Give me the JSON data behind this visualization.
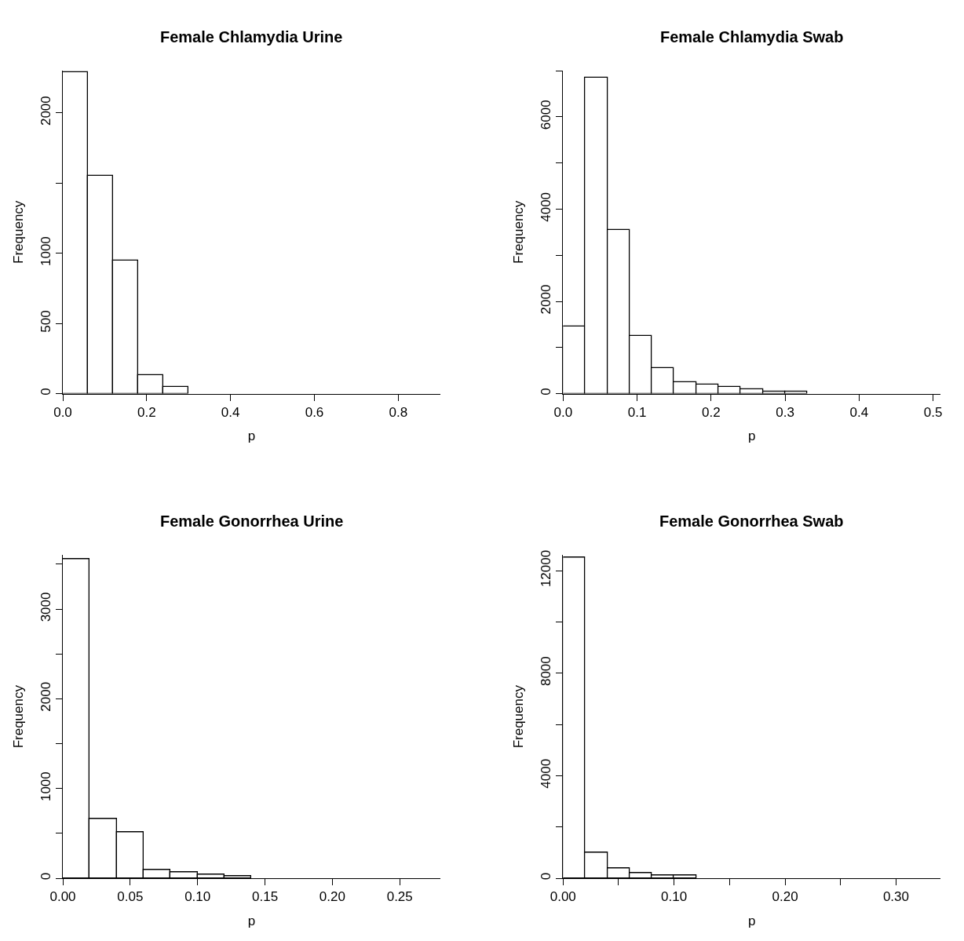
{
  "chart_data": [
    {
      "type": "histogram",
      "title": "Female Chlamydia Urine",
      "xlabel": "p",
      "ylabel": "Frequency",
      "color": "#ffffff",
      "bins": [
        0,
        0.06,
        0.12,
        0.18,
        0.24,
        0.3,
        0.36,
        0.42,
        0.48,
        0.54,
        0.6,
        0.66,
        0.72,
        0.78,
        0.84,
        0.9
      ],
      "values": [
        2290,
        1550,
        950,
        130,
        50,
        0,
        0,
        0,
        0,
        0,
        0,
        0,
        0,
        0,
        0
      ],
      "xlim": [
        0,
        0.9
      ],
      "ylim": [
        0,
        2300
      ],
      "xticks": [
        {
          "value": 0,
          "label": "0.0"
        },
        {
          "value": 0.2,
          "label": "0.2"
        },
        {
          "value": 0.4,
          "label": "0.4"
        },
        {
          "value": 0.6,
          "label": "0.6"
        },
        {
          "value": 0.8,
          "label": "0.8"
        }
      ],
      "yticks": [
        0,
        500,
        1000,
        {
          "value": 1500,
          "label": null
        },
        2000
      ]
    },
    {
      "type": "histogram",
      "title": "Female Chlamydia Swab",
      "xlabel": "p",
      "ylabel": "Frequency",
      "color": "#ffffff",
      "bins": [
        0,
        0.03,
        0.06,
        0.09,
        0.12,
        0.15,
        0.18,
        0.21,
        0.24,
        0.27,
        0.3,
        0.33,
        0.36,
        0.39,
        0.42,
        0.45,
        0.48,
        0.51
      ],
      "values": [
        1450,
        6850,
        3550,
        1250,
        550,
        250,
        200,
        150,
        100,
        50,
        50,
        0,
        0,
        0,
        0,
        0,
        0
      ],
      "xlim": [
        0,
        0.51
      ],
      "ylim": [
        0,
        7000
      ],
      "xticks": [
        {
          "value": 0,
          "label": "0.0"
        },
        0.1,
        0.2,
        0.3,
        0.4,
        0.5
      ],
      "yticks": [
        0,
        {
          "value": 1000,
          "label": null
        },
        2000,
        {
          "value": 3000,
          "label": null
        },
        4000,
        {
          "value": 5000,
          "label": null
        },
        6000,
        {
          "value": 7000,
          "label": null
        }
      ]
    },
    {
      "type": "histogram",
      "title": "Female Gonorrhea Urine",
      "xlabel": "p",
      "ylabel": "Frequency",
      "color": "#ffffff",
      "bins": [
        0,
        0.02,
        0.04,
        0.06,
        0.08,
        0.1,
        0.12,
        0.14,
        0.16,
        0.18,
        0.2,
        0.22,
        0.24,
        0.26,
        0.28
      ],
      "values": [
        3560,
        660,
        510,
        90,
        70,
        40,
        20,
        0,
        0,
        0,
        0,
        0,
        0,
        0
      ],
      "xlim": [
        0,
        0.28
      ],
      "ylim": [
        0,
        3600
      ],
      "xticks": [
        {
          "value": 0,
          "label": "0.00"
        },
        0.05,
        {
          "value": 0.1,
          "label": "0.10"
        },
        0.15,
        {
          "value": 0.2,
          "label": "0.20"
        },
        0.25
      ],
      "yticks": [
        0,
        {
          "value": 500,
          "label": null
        },
        1000,
        {
          "value": 1500,
          "label": null
        },
        2000,
        {
          "value": 2500,
          "label": null
        },
        3000,
        {
          "value": 3500,
          "label": null
        }
      ]
    },
    {
      "type": "histogram",
      "title": "Female Gonorrhea Swab",
      "xlabel": "p",
      "ylabel": "Frequency",
      "color": "#ffffff",
      "bins": [
        0,
        0.02,
        0.04,
        0.06,
        0.08,
        0.1,
        0.12,
        0.14,
        0.16,
        0.18,
        0.2,
        0.22,
        0.24,
        0.26,
        0.28,
        0.3,
        0.32,
        0.34
      ],
      "values": [
        12500,
        1000,
        400,
        200,
        100,
        100,
        0,
        0,
        0,
        0,
        0,
        0,
        0,
        0,
        0,
        0,
        0
      ],
      "xlim": [
        0,
        0.34
      ],
      "ylim": [
        0,
        12600
      ],
      "xticks": [
        {
          "value": 0,
          "label": "0.00"
        },
        {
          "value": 0.05,
          "label": null
        },
        {
          "value": 0.1,
          "label": "0.10"
        },
        {
          "value": 0.15,
          "label": null
        },
        {
          "value": 0.2,
          "label": "0.20"
        },
        {
          "value": 0.25,
          "label": null
        },
        {
          "value": 0.3,
          "label": "0.30"
        }
      ],
      "yticks": [
        0,
        {
          "value": 2000,
          "label": null
        },
        4000,
        {
          "value": 6000,
          "label": null
        },
        8000,
        {
          "value": 10000,
          "label": null
        },
        12000
      ]
    }
  ]
}
